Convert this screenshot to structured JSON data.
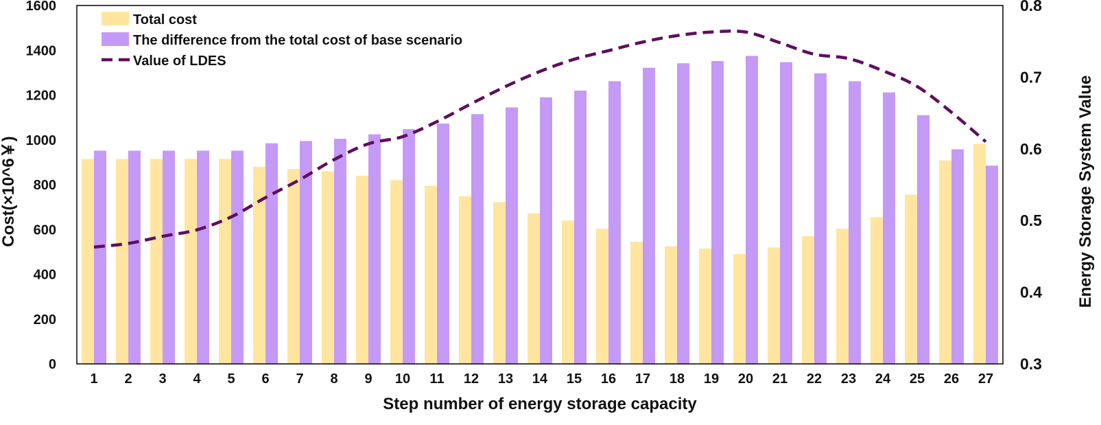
{
  "chart_data": {
    "type": "bar",
    "xlabel": "Step number of energy storage capacity",
    "ylabel": "Cost(×10^6￥)",
    "y2label": "Energy Storage System Value",
    "ylim": [
      0,
      1600
    ],
    "yticks": [
      0,
      200,
      400,
      600,
      800,
      1000,
      1200,
      1400,
      1600
    ],
    "y2lim": [
      0.3,
      0.8
    ],
    "y2ticks": [
      "0.3",
      "0.4",
      "0.5",
      "0.6",
      "0.7",
      "0.8"
    ],
    "legend_position": "top-left",
    "grid": false,
    "categories": [
      "1",
      "2",
      "3",
      "4",
      "5",
      "6",
      "7",
      "8",
      "9",
      "10",
      "11",
      "12",
      "13",
      "14",
      "15",
      "16",
      "17",
      "18",
      "19",
      "20",
      "21",
      "22",
      "23",
      "24",
      "25",
      "26",
      "27"
    ],
    "series": [
      {
        "name": "Total cost",
        "type": "bar",
        "axis": "left",
        "color": "#FFE5A0",
        "values": [
          915,
          915,
          915,
          915,
          915,
          880,
          870,
          860,
          840,
          820,
          795,
          748,
          722,
          672,
          640,
          603,
          545,
          525,
          515,
          490,
          520,
          570,
          603,
          655,
          755,
          908,
          982
        ]
      },
      {
        "name": "The difference from the total cost of base scenario",
        "type": "bar",
        "axis": "left",
        "color": "#C59AF6",
        "values": [
          952,
          952,
          952,
          952,
          952,
          985,
          995,
          1005,
          1025,
          1048,
          1073,
          1115,
          1145,
          1190,
          1220,
          1262,
          1322,
          1342,
          1352,
          1375,
          1347,
          1297,
          1262,
          1212,
          1110,
          958,
          885
        ]
      },
      {
        "name": "Value of LDES",
        "type": "line",
        "style": "dashed",
        "axis": "right",
        "color": "#5E0F5E",
        "values": [
          0.463,
          0.468,
          0.478,
          0.487,
          0.505,
          0.532,
          0.557,
          0.585,
          0.607,
          0.617,
          0.638,
          0.663,
          0.687,
          0.708,
          0.725,
          0.737,
          0.749,
          0.758,
          0.763,
          0.763,
          0.748,
          0.732,
          0.726,
          0.709,
          0.687,
          0.651,
          0.61
        ]
      }
    ]
  }
}
